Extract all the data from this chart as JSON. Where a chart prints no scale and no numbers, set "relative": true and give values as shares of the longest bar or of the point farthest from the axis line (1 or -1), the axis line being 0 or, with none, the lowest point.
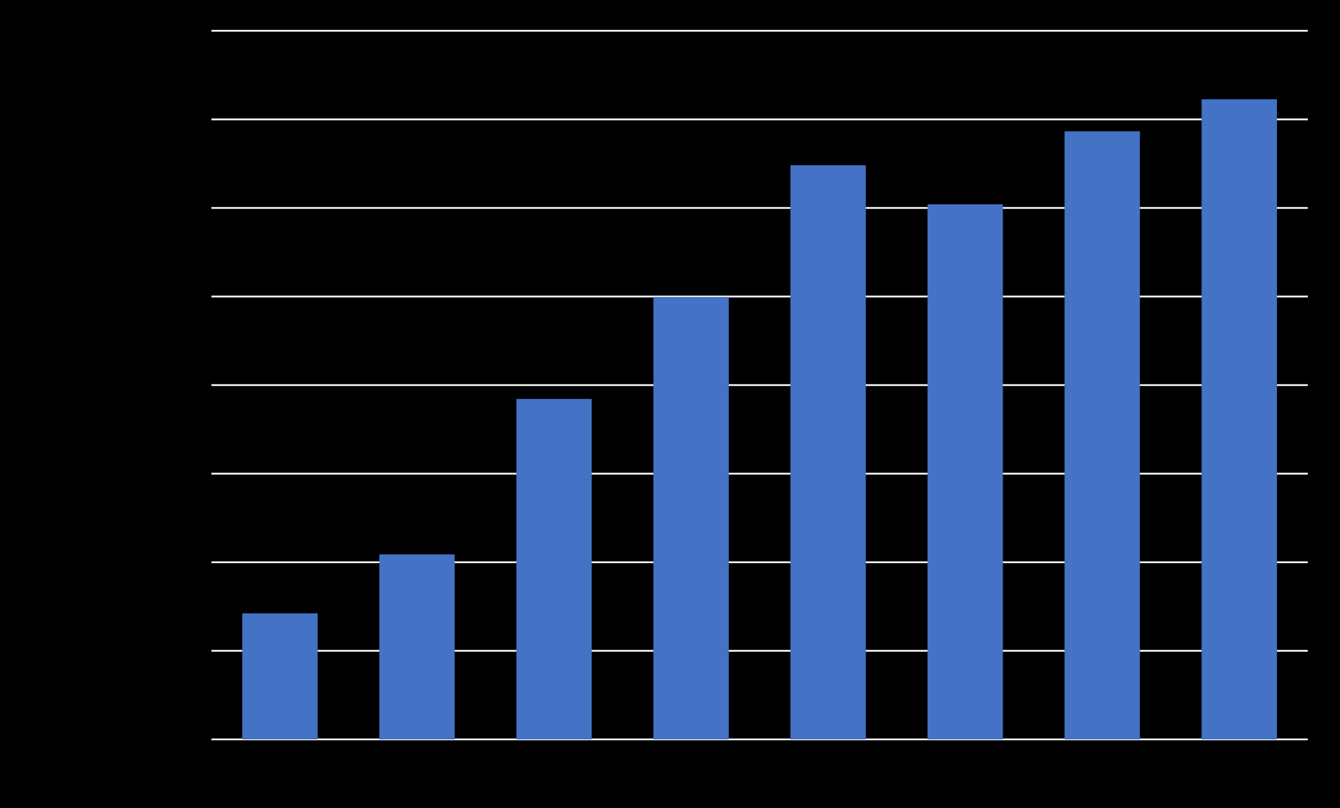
{
  "chart_data": {
    "type": "bar",
    "relative": true,
    "grid": "y",
    "color": "#4472c4",
    "categories": [
      null,
      null,
      null,
      null,
      null,
      null,
      null,
      null
    ],
    "values": [
      0.197,
      0.289,
      0.532,
      0.691,
      0.897,
      0.836,
      0.95,
      1
    ]
  }
}
